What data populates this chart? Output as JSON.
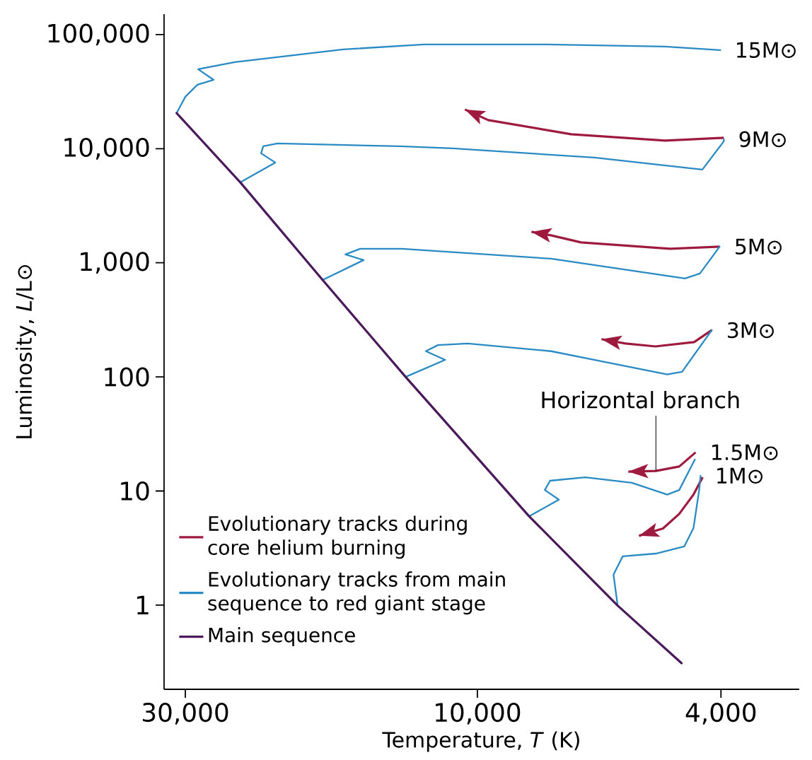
{
  "chart_data": {
    "type": "line",
    "xlabel": "Temperature, *T* (K)",
    "ylabel": "Luminosity, *L*/L⊙",
    "log": "xy",
    "xlim": [
      32500,
      2980
    ],
    "ylim": [
      0.183,
      151000
    ],
    "xticks": [
      {
        "value": 30000,
        "label": "30,000"
      },
      {
        "value": 10000,
        "label": "10,000"
      },
      {
        "value": 4000,
        "label": "4,000"
      }
    ],
    "yticks": [
      1,
      10,
      100,
      {
        "value": 1000,
        "label": "1,000"
      },
      {
        "value": 10000,
        "label": "10,000"
      },
      {
        "value": 100000,
        "label": "100,000"
      }
    ],
    "legend": "bottom left",
    "series": [
      {
        "name": "Evolutionary tracks during core helium burning",
        "color": "#9e1b3f",
        "x": [
          3958,
          4935,
          7030,
          9600,
          10480,
          null,
          4020,
          4843,
          6770,
          7580,
          8160,
          null,
          4140,
          4425,
          5120,
          5730,
          6270,
          null,
          4401,
          4680,
          5110,
          5668,
          null,
          4285,
          4436,
          4680,
          4975,
          5445
        ],
        "values": [
          12450,
          11770,
          13380,
          17800,
          22040,
          null,
          1384,
          1327,
          1508,
          1740,
          1868,
          null,
          257,
          202,
          185,
          196,
          214,
          null,
          21.8,
          16.4,
          15.0,
          14.8,
          null,
          13.2,
          9.3,
          6.3,
          4.7,
          4.05
        ]
      },
      {
        "name": "Evolutionary tracks from main sequence to red giant stage",
        "color": "#2a8ac4",
        "x": [
          31000,
          30000,
          28670,
          26970,
          28590,
          24900,
          16570,
          12230,
          7700,
          4935,
          4010,
          null,
          24400,
          21390,
          22560,
          22380,
          21210,
          13390,
          10960,
          6440,
          4290,
          3958,
          3958,
          null,
          17900,
          15340,
          16430,
          15540,
          13280,
          7580,
          4580,
          4330,
          4020,
          null,
          13100,
          11290,
          12140,
          11600,
          10370,
          7580,
          4896,
          4630,
          4140,
          null,
          8230,
          7360,
          7760,
          7610,
          6665,
          5594,
          4896,
          4680,
          4413,
          null,
          5900,
          5993,
          5788,
          5110,
          4592,
          4436,
          4342,
          4319
        ],
        "values": [
          20500,
          28500,
          36300,
          40100,
          49700,
          57300,
          74100,
          81900,
          81900,
          78500,
          73100,
          null,
          5070,
          7560,
          9100,
          10500,
          11110,
          10500,
          10060,
          8350,
          6555,
          11600,
          12110,
          null,
          708,
          1056,
          1183,
          1327,
          1327,
          1086,
          729,
          805,
          1384,
          null,
          100,
          141,
          168,
          190,
          196,
          168,
          105,
          111,
          257,
          null,
          6.0,
          8.4,
          10.2,
          12.3,
          13.2,
          11.8,
          9.3,
          10.2,
          18.9,
          null,
          0.99,
          1.85,
          2.68,
          2.83,
          3.27,
          4.73,
          10.2,
          13.6
        ]
      },
      {
        "name": "Main sequence",
        "color": "#4a1a5a",
        "x": [
          31000,
          24400,
          17900,
          13100,
          8230,
          5900,
          4640
        ],
        "values": [
          20500,
          5070,
          708,
          100,
          6.0,
          0.99,
          0.31
        ]
      }
    ],
    "annotations": [
      {
        "text": "15M⊙",
        "x": 4010,
        "y": 73100
      },
      {
        "text": "9M⊙",
        "x": 3958,
        "y": 12110
      },
      {
        "text": "5M⊙",
        "x": 4020,
        "y": 1384
      },
      {
        "text": "3M⊙",
        "x": 4140,
        "y": 257
      },
      {
        "text": "1.5M⊙",
        "x": 4401,
        "y": 21.8
      },
      {
        "text": "1M⊙",
        "x": 4319,
        "y": 13.6
      },
      {
        "text": "Horizontal branch",
        "x": 5110,
        "y": 15.0
      }
    ]
  }
}
